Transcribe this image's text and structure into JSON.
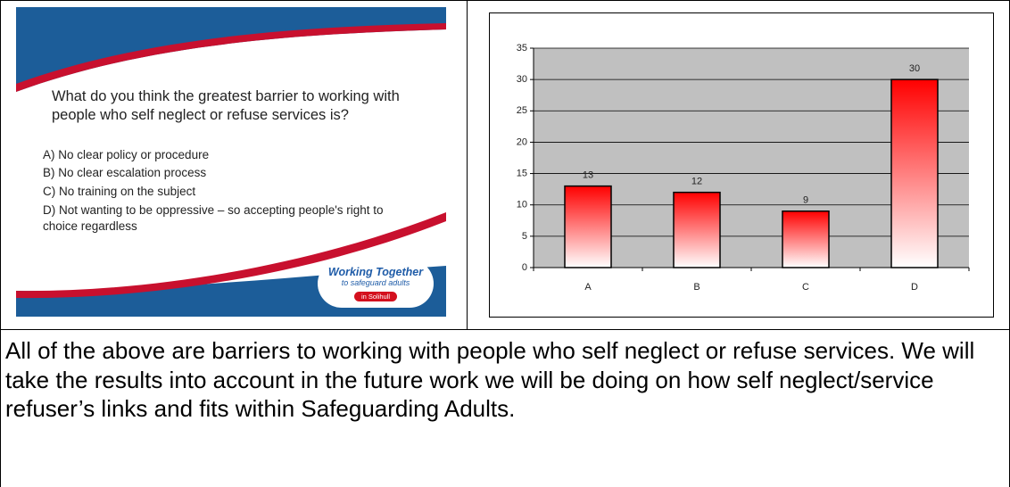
{
  "slide": {
    "question": "What do you think the greatest barrier to working with people who self neglect or refuse services is?",
    "options": [
      "A)  No clear policy or procedure",
      "B)  No clear escalation process",
      "C)  No training on the subject",
      "D)  Not wanting to be oppressive – so accepting people's right to choice regardless"
    ],
    "logo": {
      "title": "Working Together",
      "subtitle": "to safeguard adults",
      "place": "in Solihull"
    }
  },
  "chart_data": {
    "type": "bar",
    "categories": [
      "A",
      "B",
      "C",
      "D"
    ],
    "values": [
      13,
      12,
      9,
      30
    ],
    "color": "#ff0000",
    "ylim": [
      0,
      35
    ],
    "yticks": [
      0,
      5,
      10,
      15,
      20,
      25,
      30,
      35
    ],
    "grid": true
  },
  "text": "All of the above are barriers to working with people who self neglect or refuse services.  We will take the results into account in the future work we will be doing on how self neglect/service refuser’s links and fits within Safeguarding Adults."
}
